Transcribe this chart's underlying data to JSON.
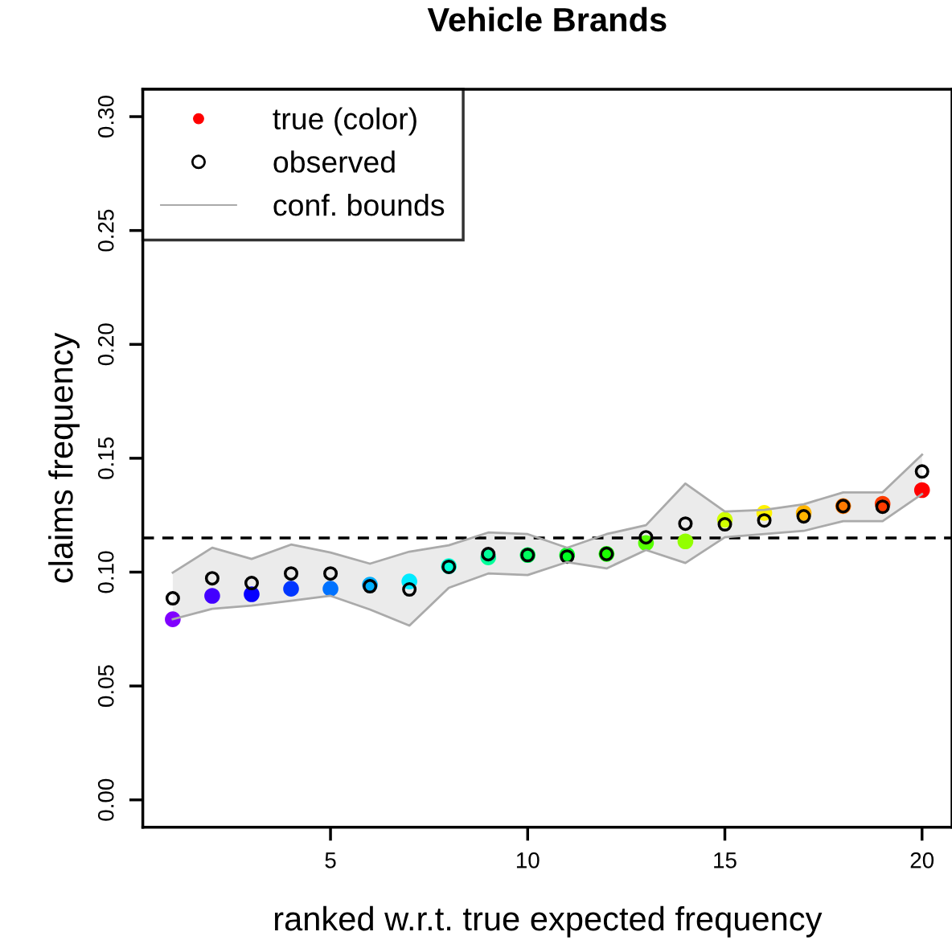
{
  "chart_data": {
    "type": "scatter",
    "title": "Vehicle Brands",
    "xlabel": "ranked w.r.t. true expected frequency",
    "ylabel": "claims frequency",
    "x": [
      1,
      2,
      3,
      4,
      5,
      6,
      7,
      8,
      9,
      10,
      11,
      12,
      13,
      14,
      15,
      16,
      17,
      18,
      19,
      20
    ],
    "xlim": [
      0.24,
      20.76
    ],
    "xticks": [
      5,
      10,
      15,
      20
    ],
    "ylim": [
      -0.012,
      0.312
    ],
    "yticks": [
      {
        "value": 0,
        "label": "0.00"
      },
      {
        "value": 0.05,
        "label": "0.05"
      },
      {
        "value": 0.1,
        "label": "0.10"
      },
      {
        "value": 0.15,
        "label": "0.15"
      },
      {
        "value": 0.2,
        "label": "0.20"
      },
      {
        "value": 0.25,
        "label": "0.25"
      },
      {
        "value": 0.3,
        "label": "0.30"
      }
    ],
    "grid": false,
    "legend": "top left",
    "series": [
      {
        "name": "true (color)",
        "marker": "circle",
        "color": "#ff0000",
        "colors": [
          "#8000ff",
          "#4300ff",
          "#0700ff",
          "#0036ff",
          "#0072ff",
          "#00afff",
          "#00ebff",
          "#00ffd7",
          "#00ff9a",
          "#00ff5e",
          "#00ff22",
          "#1bff00",
          "#57ff00",
          "#93ff00",
          "#d0ff00",
          "#fff200",
          "#ffb500",
          "#ff7900",
          "#ff3c00",
          "#ff0000"
        ],
        "values": [
          0.0793,
          0.0896,
          0.0903,
          0.0927,
          0.0927,
          0.0945,
          0.0959,
          0.1026,
          0.1065,
          0.1075,
          0.1075,
          0.108,
          0.1128,
          0.1135,
          0.123,
          0.126,
          0.126,
          0.129,
          0.13,
          0.136
        ]
      },
      {
        "name": "observed",
        "marker": "circle",
        "color": "#000000",
        "values": [
          0.0885,
          0.0973,
          0.0952,
          0.0994,
          0.0994,
          0.0938,
          0.0924,
          0.1023,
          0.1079,
          0.1075,
          0.1068,
          0.108,
          0.1153,
          0.1213,
          0.121,
          0.1227,
          0.1245,
          0.129,
          0.1287,
          0.1442
        ]
      },
      {
        "name": "conf. bounds",
        "type": "line",
        "color": "#aaaaaa",
        "values": [
          0.0998,
          0.1107,
          0.1058,
          0.1121,
          0.1086,
          0.1037,
          0.109,
          0.1118,
          0.1174,
          0.1167,
          0.1107,
          0.1167,
          0.1206,
          0.1389,
          0.1266,
          0.1273,
          0.1298,
          0.135,
          0.135,
          0.1516
        ]
      },
      {
        "type": "line",
        "color": "#aaaaaa",
        "values": [
          0.0793,
          0.0839,
          0.0853,
          0.0874,
          0.0896,
          0.0836,
          0.0765,
          0.0931,
          0.0994,
          0.0987,
          0.1044,
          0.1016,
          0.1097,
          0.104,
          0.1153,
          0.1167,
          0.1181,
          0.1224,
          0.1224,
          0.1343
        ]
      }
    ],
    "ref_lines": [
      {
        "axis": "y",
        "value": 0.115,
        "color": "#000000",
        "line_style": "dashed"
      }
    ]
  }
}
